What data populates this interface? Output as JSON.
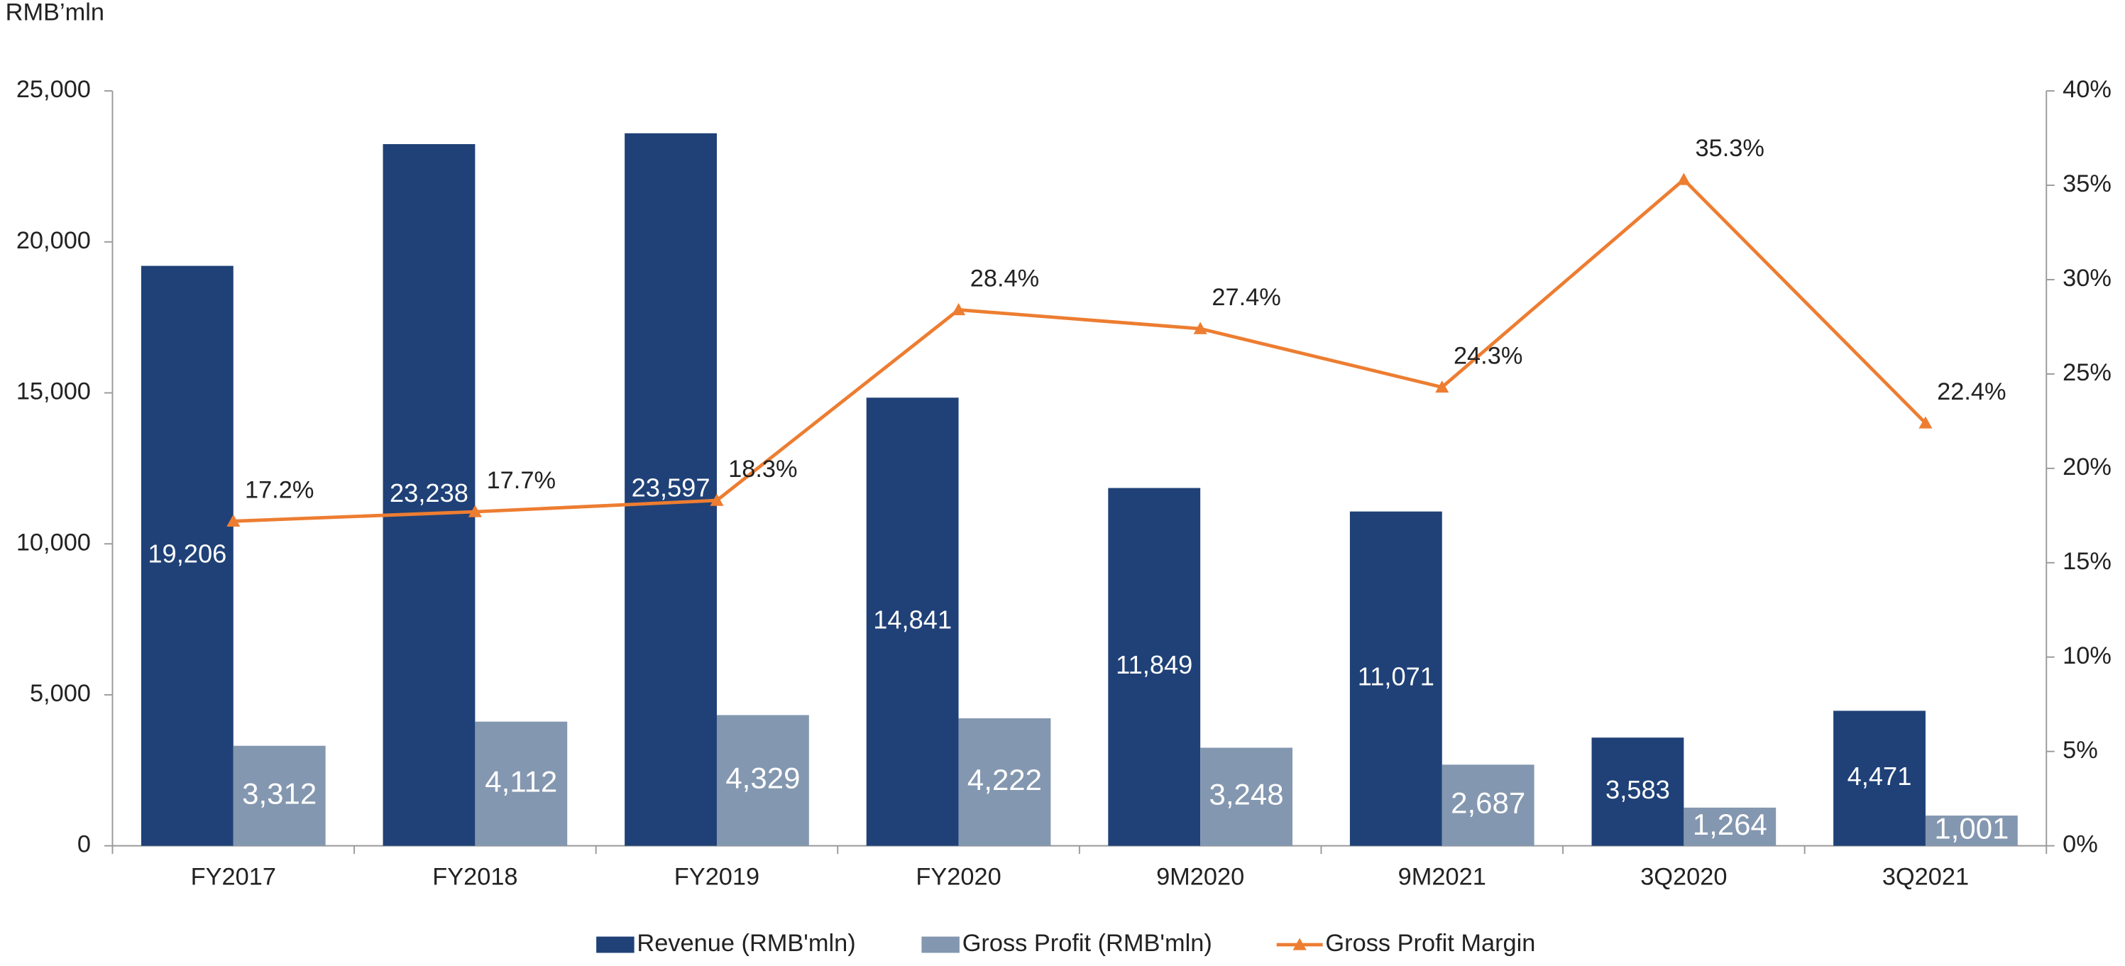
{
  "chart_data": {
    "type": "bar_line",
    "y_label": "RMB’mln",
    "categories": [
      "FY2017",
      "FY2018",
      "FY2019",
      "FY2020",
      "9M2020",
      "9M2021",
      "3Q2020",
      "3Q2021"
    ],
    "series": [
      {
        "name": "Revenue (RMB'mln)",
        "color": "#1f4177",
        "values": [
          19206,
          23238,
          23597,
          14841,
          11849,
          11071,
          3583,
          4471
        ],
        "value_labels": [
          "19,206",
          "23,238",
          "23,597",
          "14,841",
          "11,849",
          "11,071",
          "3,583",
          "4,471"
        ]
      },
      {
        "name": "Gross Profit (RMB'mln)",
        "color": "#8497b0",
        "values": [
          3312,
          4112,
          4329,
          4222,
          3248,
          2687,
          1264,
          1001
        ],
        "value_labels": [
          "3,312",
          "4,112",
          "4,329",
          "4,222",
          "3,248",
          "2,687",
          "1,264",
          "1,001"
        ]
      },
      {
        "name": "Gross Profit Margin",
        "color": "#ed7d31",
        "axis": "y2",
        "values": [
          17.2,
          17.7,
          18.3,
          28.4,
          27.4,
          24.3,
          35.3,
          22.4
        ],
        "value_labels": [
          "17.2%",
          "17.7%",
          "18.3%",
          "28.4%",
          "27.4%",
          "24.3%",
          "35.3%",
          "22.4%"
        ]
      }
    ],
    "ylim": [
      0,
      25000
    ],
    "yticks": [
      0,
      {
        "value": 5000,
        "label": "5,000"
      },
      {
        "value": 10000,
        "label": "10,000"
      },
      {
        "value": 15000,
        "label": "15,000"
      },
      {
        "value": 20000,
        "label": "20,000"
      },
      {
        "value": 25000,
        "label": "25,000"
      }
    ],
    "y2lim": [
      0,
      40
    ],
    "y2ticks": [
      {
        "value": 0,
        "label": "0%"
      },
      {
        "value": 5,
        "label": "5%"
      },
      {
        "value": 10,
        "label": "10%"
      },
      {
        "value": 15,
        "label": "15%"
      },
      {
        "value": 20,
        "label": "20%"
      },
      {
        "value": 25,
        "label": "25%"
      },
      {
        "value": 30,
        "label": "30%"
      },
      {
        "value": 35,
        "label": "35%"
      },
      {
        "value": 40,
        "label": "40%"
      }
    ],
    "legend": "bottom"
  }
}
